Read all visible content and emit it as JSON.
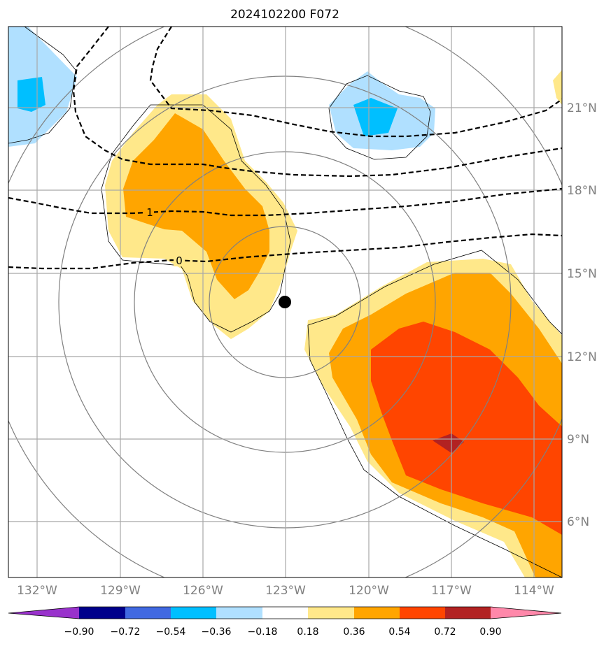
{
  "title": "2024102200 F072",
  "lon_ticks": [
    "132°W",
    "129°W",
    "126°W",
    "123°W",
    "120°W",
    "117°W",
    "114°W"
  ],
  "lat_ticks": [
    "21°N",
    "18°N",
    "15°N",
    "12°N",
    "9°N",
    "6°N"
  ],
  "contour_labels": [
    "1",
    "0"
  ],
  "colorbar": {
    "labels": [
      "−0.90",
      "−0.72",
      "−0.54",
      "−0.36",
      "−0.18",
      "0.18",
      "0.36",
      "0.54",
      "0.72",
      "0.90"
    ],
    "colors": [
      "#9932cc",
      "#00008b",
      "#4169e1",
      "#00bfff",
      "#b0e0ff",
      "#ffffff",
      "#ffe88a",
      "#ffa500",
      "#ff4500",
      "#b22222",
      "#ff88aa"
    ]
  },
  "marker": "storm-center"
}
